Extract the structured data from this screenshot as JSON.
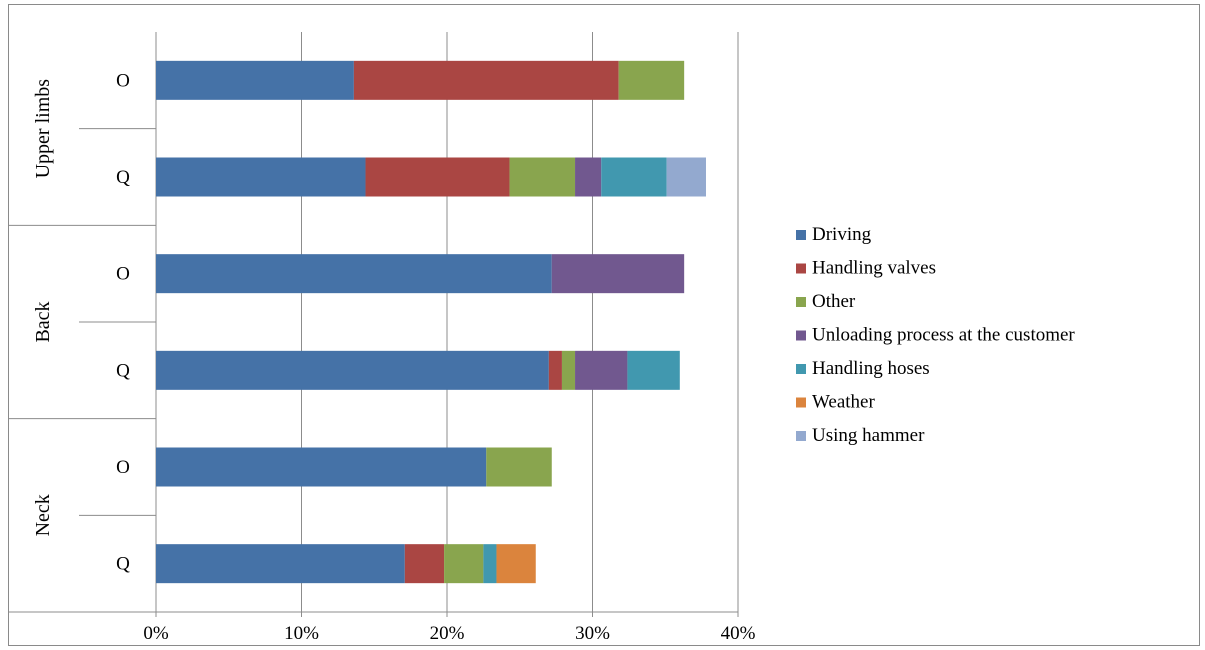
{
  "chart_data": {
    "type": "bar",
    "orientation": "horizontal",
    "stacked": true,
    "groups": [
      {
        "label": "Upper limbs",
        "rows": [
          {
            "label": "O",
            "values": [
              13.6,
              18.2,
              4.5,
              0,
              0,
              0,
              0
            ]
          },
          {
            "label": "Q",
            "values": [
              14.4,
              9.9,
              4.5,
              1.8,
              4.5,
              0,
              2.7
            ]
          }
        ]
      },
      {
        "label": "Back",
        "rows": [
          {
            "label": "O",
            "values": [
              27.2,
              0,
              0,
              9.1,
              0,
              0,
              0
            ]
          },
          {
            "label": "Q",
            "values": [
              27.0,
              0.9,
              0.9,
              3.6,
              3.6,
              0,
              0
            ]
          }
        ]
      },
      {
        "label": "Neck",
        "rows": [
          {
            "label": "O",
            "values": [
              22.7,
              0,
              4.5,
              0,
              0,
              0,
              0
            ]
          },
          {
            "label": "Q",
            "values": [
              17.1,
              2.7,
              2.7,
              0,
              0.9,
              2.7,
              0
            ]
          }
        ]
      }
    ],
    "series": [
      {
        "name": "Driving",
        "color": "#4572A7"
      },
      {
        "name": "Handling valves",
        "color": "#AA4643"
      },
      {
        "name": "Other",
        "color": "#89A54E"
      },
      {
        "name": "Unloading process at the customer",
        "color": "#71588F"
      },
      {
        "name": "Handling hoses",
        "color": "#4198AF"
      },
      {
        "name": "Weather",
        "color": "#DB843D"
      },
      {
        "name": "Using hammer",
        "color": "#93A9CF"
      }
    ],
    "xlim": [
      0,
      40
    ],
    "xticks": [
      "0%",
      "10%",
      "20%",
      "30%",
      "40%"
    ],
    "grid": true,
    "legend": "right"
  }
}
